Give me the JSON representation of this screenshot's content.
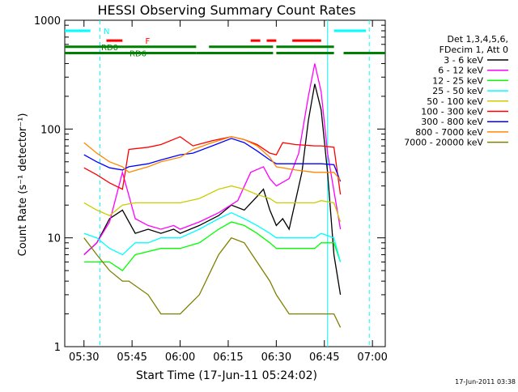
{
  "chart_data": {
    "type": "line",
    "title": "HESSI Observing Summary Count Rates",
    "xlabel": "Start Time (17-Jun-11 05:24:02)",
    "ylabel": "Count Rate (s⁻¹ detector⁻¹)",
    "timestamp": "17-Jun-2011 03:38",
    "x_unit": "minutes after 05:24:02",
    "xlim": [
      0,
      100
    ],
    "ylim": [
      1,
      1000
    ],
    "yscale": "log",
    "x_ticks": [
      {
        "label": "05:30",
        "value": 6
      },
      {
        "label": "05:45",
        "value": 21
      },
      {
        "label": "06:00",
        "value": 36
      },
      {
        "label": "06:15",
        "value": 51
      },
      {
        "label": "06:30",
        "value": 66
      },
      {
        "label": "06:45",
        "value": 81
      },
      {
        "label": "07:00",
        "value": 96
      }
    ],
    "y_ticks": [
      {
        "label": "1",
        "value": 1
      },
      {
        "label": "10",
        "value": 10
      },
      {
        "label": "100",
        "value": 100
      },
      {
        "label": "1000",
        "value": 1000
      }
    ],
    "legend_header": [
      "Det 1,3,4,5,6,",
      "FDecim 1, Att 0"
    ],
    "legend_position": "right",
    "series": [
      {
        "name": "3 - 6 keV",
        "color": "#000000",
        "points": [
          [
            6,
            7
          ],
          [
            10,
            9
          ],
          [
            14,
            15
          ],
          [
            18,
            18
          ],
          [
            22,
            11
          ],
          [
            26,
            12
          ],
          [
            30,
            11
          ],
          [
            34,
            12
          ],
          [
            36,
            11
          ],
          [
            42,
            13
          ],
          [
            48,
            16
          ],
          [
            52,
            20
          ],
          [
            56,
            18
          ],
          [
            60,
            24
          ],
          [
            62,
            28
          ],
          [
            64,
            18
          ],
          [
            66,
            13
          ],
          [
            68,
            15
          ],
          [
            70,
            12
          ],
          [
            74,
            40
          ],
          [
            76,
            120
          ],
          [
            78,
            260
          ],
          [
            80,
            150
          ],
          [
            82,
            40
          ],
          [
            84,
            7
          ],
          [
            86,
            3
          ]
        ]
      },
      {
        "name": "6 - 12 keV",
        "color": "#ff00ff",
        "points": [
          [
            6,
            7
          ],
          [
            10,
            9
          ],
          [
            14,
            14
          ],
          [
            18,
            40
          ],
          [
            22,
            15
          ],
          [
            26,
            13
          ],
          [
            30,
            12
          ],
          [
            34,
            13
          ],
          [
            36,
            12
          ],
          [
            42,
            14
          ],
          [
            48,
            17
          ],
          [
            54,
            22
          ],
          [
            58,
            40
          ],
          [
            62,
            45
          ],
          [
            64,
            35
          ],
          [
            66,
            30
          ],
          [
            70,
            35
          ],
          [
            73,
            60
          ],
          [
            76,
            200
          ],
          [
            78,
            400
          ],
          [
            80,
            220
          ],
          [
            82,
            60
          ],
          [
            86,
            12
          ]
        ]
      },
      {
        "name": "12 - 25 keV",
        "color": "#00ff00",
        "points": [
          [
            6,
            6
          ],
          [
            10,
            6
          ],
          [
            14,
            6
          ],
          [
            18,
            5
          ],
          [
            22,
            7
          ],
          [
            30,
            8
          ],
          [
            36,
            8
          ],
          [
            42,
            9
          ],
          [
            48,
            12
          ],
          [
            52,
            14
          ],
          [
            56,
            13
          ],
          [
            60,
            11
          ],
          [
            64,
            9
          ],
          [
            66,
            8
          ],
          [
            72,
            8
          ],
          [
            78,
            8
          ],
          [
            80,
            9
          ],
          [
            84,
            9
          ],
          [
            86,
            6
          ]
        ]
      },
      {
        "name": "25 - 50 keV",
        "color": "#00ffff",
        "points": [
          [
            6,
            11
          ],
          [
            10,
            10
          ],
          [
            14,
            8
          ],
          [
            18,
            7
          ],
          [
            22,
            9
          ],
          [
            26,
            9
          ],
          [
            30,
            10
          ],
          [
            36,
            10
          ],
          [
            42,
            12
          ],
          [
            48,
            15
          ],
          [
            52,
            17
          ],
          [
            56,
            15
          ],
          [
            60,
            13
          ],
          [
            64,
            11
          ],
          [
            66,
            10
          ],
          [
            72,
            10
          ],
          [
            78,
            10
          ],
          [
            80,
            11
          ],
          [
            84,
            10
          ],
          [
            86,
            6
          ]
        ]
      },
      {
        "name": "50 - 100 keV",
        "color": "#cccc00",
        "points": [
          [
            6,
            21
          ],
          [
            10,
            18
          ],
          [
            14,
            16
          ],
          [
            18,
            20
          ],
          [
            22,
            21
          ],
          [
            30,
            21
          ],
          [
            36,
            21
          ],
          [
            42,
            23
          ],
          [
            48,
            28
          ],
          [
            52,
            30
          ],
          [
            56,
            28
          ],
          [
            60,
            25
          ],
          [
            64,
            23
          ],
          [
            66,
            21
          ],
          [
            72,
            21
          ],
          [
            78,
            21
          ],
          [
            80,
            22
          ],
          [
            84,
            21
          ],
          [
            86,
            14
          ]
        ]
      },
      {
        "name": "100 - 300 keV",
        "color": "#ff0000",
        "points": [
          [
            6,
            44
          ],
          [
            10,
            38
          ],
          [
            14,
            32
          ],
          [
            18,
            28
          ],
          [
            20,
            65
          ],
          [
            26,
            68
          ],
          [
            30,
            72
          ],
          [
            36,
            85
          ],
          [
            40,
            70
          ],
          [
            46,
            78
          ],
          [
            52,
            85
          ],
          [
            56,
            80
          ],
          [
            60,
            72
          ],
          [
            64,
            60
          ],
          [
            66,
            58
          ],
          [
            68,
            75
          ],
          [
            72,
            72
          ],
          [
            78,
            70
          ],
          [
            80,
            70
          ],
          [
            84,
            68
          ],
          [
            86,
            25
          ]
        ]
      },
      {
        "name": "300 - 800 keV",
        "color": "#0000ff",
        "points": [
          [
            6,
            58
          ],
          [
            10,
            50
          ],
          [
            14,
            44
          ],
          [
            18,
            42
          ],
          [
            20,
            45
          ],
          [
            26,
            48
          ],
          [
            30,
            52
          ],
          [
            36,
            58
          ],
          [
            40,
            60
          ],
          [
            46,
            70
          ],
          [
            52,
            82
          ],
          [
            56,
            75
          ],
          [
            60,
            63
          ],
          [
            64,
            52
          ],
          [
            66,
            48
          ],
          [
            72,
            48
          ],
          [
            78,
            48
          ],
          [
            80,
            48
          ],
          [
            84,
            47
          ],
          [
            86,
            33
          ]
        ]
      },
      {
        "name": "800 - 7000 keV",
        "color": "#ff8800",
        "points": [
          [
            6,
            75
          ],
          [
            10,
            60
          ],
          [
            14,
            50
          ],
          [
            18,
            45
          ],
          [
            20,
            40
          ],
          [
            26,
            45
          ],
          [
            30,
            50
          ],
          [
            36,
            55
          ],
          [
            40,
            65
          ],
          [
            46,
            75
          ],
          [
            52,
            85
          ],
          [
            56,
            80
          ],
          [
            60,
            70
          ],
          [
            64,
            55
          ],
          [
            66,
            45
          ],
          [
            72,
            42
          ],
          [
            78,
            40
          ],
          [
            80,
            40
          ],
          [
            84,
            40
          ],
          [
            86,
            34
          ]
        ]
      },
      {
        "name": "7000 - 20000 keV",
        "color": "#808000",
        "points": [
          [
            6,
            10
          ],
          [
            10,
            7
          ],
          [
            14,
            5
          ],
          [
            18,
            4
          ],
          [
            20,
            4
          ],
          [
            26,
            3
          ],
          [
            30,
            2
          ],
          [
            34,
            2
          ],
          [
            36,
            2
          ],
          [
            42,
            3
          ],
          [
            48,
            7
          ],
          [
            52,
            10
          ],
          [
            56,
            9
          ],
          [
            60,
            6
          ],
          [
            64,
            4
          ],
          [
            66,
            3
          ],
          [
            70,
            2
          ],
          [
            74,
            2
          ],
          [
            78,
            2
          ],
          [
            80,
            2
          ],
          [
            84,
            2
          ],
          [
            86,
            1.5
          ]
        ]
      }
    ],
    "flag_bars": [
      {
        "label": "N",
        "color": "#00ffff",
        "y": 800,
        "segments": [
          [
            0,
            8
          ],
          [
            84,
            94
          ]
        ]
      },
      {
        "label": "F",
        "color": "#ff0000",
        "y": 650,
        "segments": [
          [
            13,
            18
          ],
          [
            58,
            61
          ],
          [
            63,
            66
          ],
          [
            71,
            80
          ]
        ]
      },
      {
        "label": "RD0",
        "color": "#008000",
        "y": 570,
        "segments": [
          [
            0,
            41
          ],
          [
            45,
            65
          ],
          [
            66,
            84
          ]
        ]
      },
      {
        "label": "RD6",
        "color": "#008000",
        "y": 500,
        "segments": [
          [
            0,
            41
          ],
          [
            41,
            65
          ],
          [
            66,
            84
          ],
          [
            87,
            100
          ]
        ]
      }
    ],
    "markers": [
      {
        "x": 11,
        "style": "dashed",
        "color": "#00ffff"
      },
      {
        "x": 82,
        "style": "solid",
        "color": "#00ffff"
      },
      {
        "x": 95,
        "style": "dashed",
        "color": "#00ffff"
      }
    ]
  }
}
